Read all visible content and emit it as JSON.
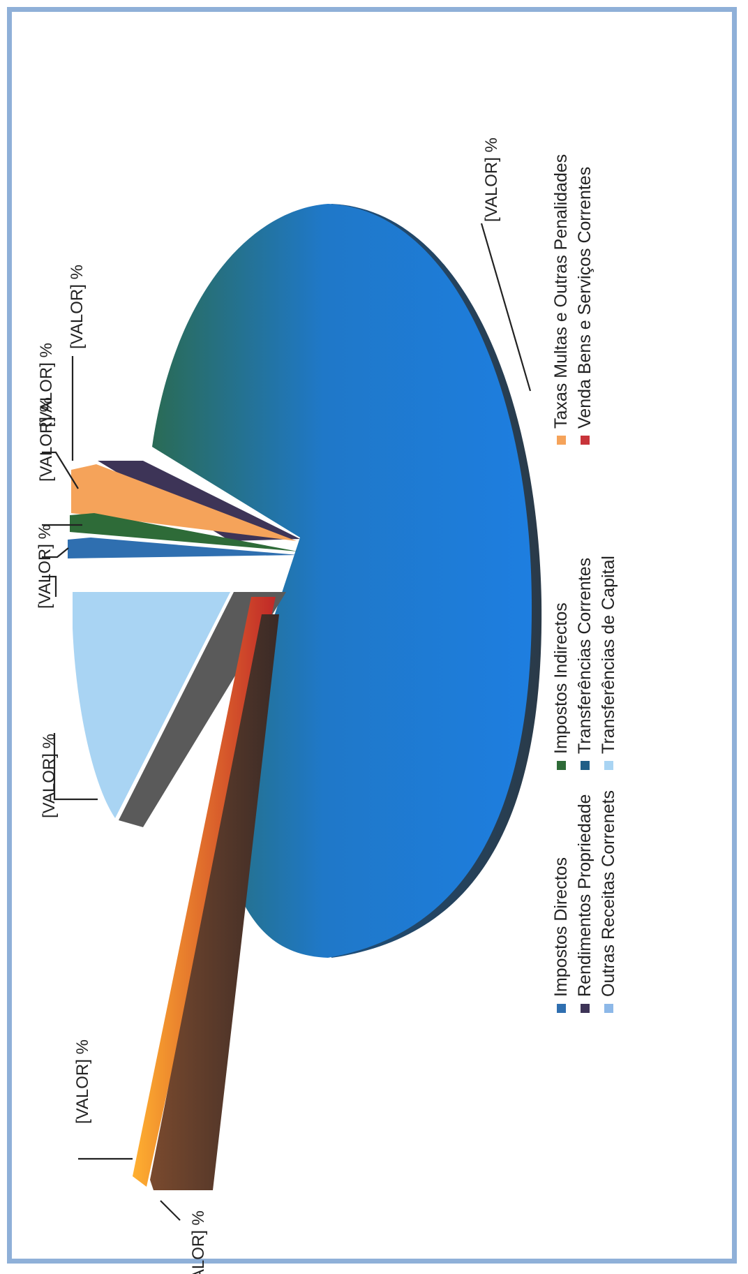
{
  "chart_data": {
    "type": "pie",
    "title": "",
    "legend_position": "bottom",
    "data_label": "[VALOR] %",
    "slices": [
      {
        "name": "Impostos Directos",
        "color": "#2f6fb0"
      },
      {
        "name": "Impostos Indirectos",
        "color": "#2e6b38"
      },
      {
        "name": "Taxas Multas e Outras Penalidades",
        "color": "#f5a35a"
      },
      {
        "name": "Rendimentos Propriedade",
        "color": "#3d3457"
      },
      {
        "name": "Transferências Correntes",
        "color": "#1f5e86"
      },
      {
        "name": "Venda Bens e Serviços Correntes",
        "color": "#c8343a"
      },
      {
        "name": "Outras Receitas Correnets",
        "color": "#8db8e8"
      },
      {
        "name": "Transferências de Capital",
        "color": "#a9d4f3"
      }
    ]
  }
}
